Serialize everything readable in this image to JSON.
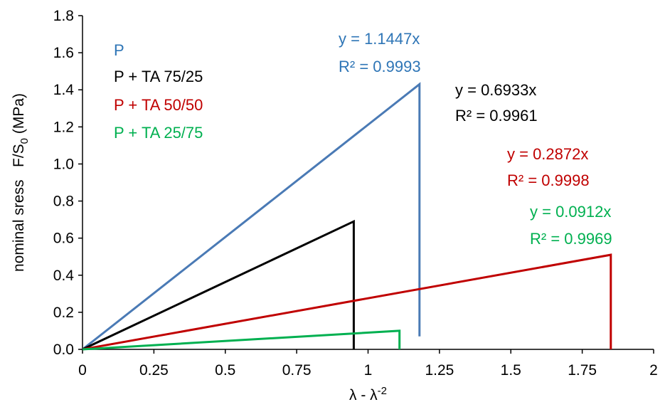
{
  "chart_data": {
    "type": "line",
    "xlabel": "λ - λ",
    "xlabel_sup": "-2",
    "ylabel": "nominal sress   F/S",
    "ylabel_sub": "0",
    "ylabel_unit": " (MPa)",
    "xlim": [
      0,
      2
    ],
    "ylim": [
      0,
      1.8
    ],
    "xticks": [
      0,
      0.25,
      0.5,
      0.75,
      1,
      1.25,
      1.5,
      1.75,
      2
    ],
    "xtick_labels": [
      "0",
      "0.25",
      "0.5",
      "0.75",
      "1",
      "1.25",
      "1.5",
      "1.75",
      "2"
    ],
    "yticks": [
      0,
      0.2,
      0.4,
      0.6,
      0.8,
      1.0,
      1.2,
      1.4,
      1.6,
      1.8
    ],
    "ytick_labels": [
      "0.0",
      "0.2",
      "0.4",
      "0.6",
      "0.8",
      "1.0",
      "1.2",
      "1.4",
      "1.6",
      "1.8"
    ],
    "grid": false,
    "legend_position": "top-left",
    "series": [
      {
        "name": "P",
        "color": "#4a7ab5",
        "legend_color": "#2e75b6",
        "points": [
          [
            0,
            0
          ],
          [
            1.18,
            1.43
          ],
          [
            1.18,
            0.07
          ]
        ],
        "fit": {
          "equation": "y = 1.1447x",
          "r2": "R² = 0.9993",
          "color": "#2e75b6"
        }
      },
      {
        "name": "P + TA 75/25",
        "color": "#000000",
        "legend_color": "#000000",
        "points": [
          [
            0,
            0
          ],
          [
            0.95,
            0.69
          ],
          [
            0.95,
            0.0
          ]
        ],
        "fit": {
          "equation": "y = 0.6933x",
          "r2": "R² = 0.9961",
          "color": "#000000"
        }
      },
      {
        "name": "P + TA 50/50",
        "color": "#c00000",
        "legend_color": "#c00000",
        "points": [
          [
            0,
            0
          ],
          [
            1.85,
            0.51
          ],
          [
            1.85,
            0.0
          ]
        ],
        "fit": {
          "equation": "y = 0.2872x",
          "r2": "R² = 0.9998",
          "color": "#c00000"
        }
      },
      {
        "name": "P + TA 25/75",
        "color": "#00b050",
        "legend_color": "#00b050",
        "points": [
          [
            0,
            0
          ],
          [
            1.11,
            0.1
          ],
          [
            1.11,
            0.0
          ]
        ],
        "fit": {
          "equation": "y = 0.0912x",
          "r2": "R² = 0.9969",
          "color": "#00b050"
        }
      }
    ]
  }
}
